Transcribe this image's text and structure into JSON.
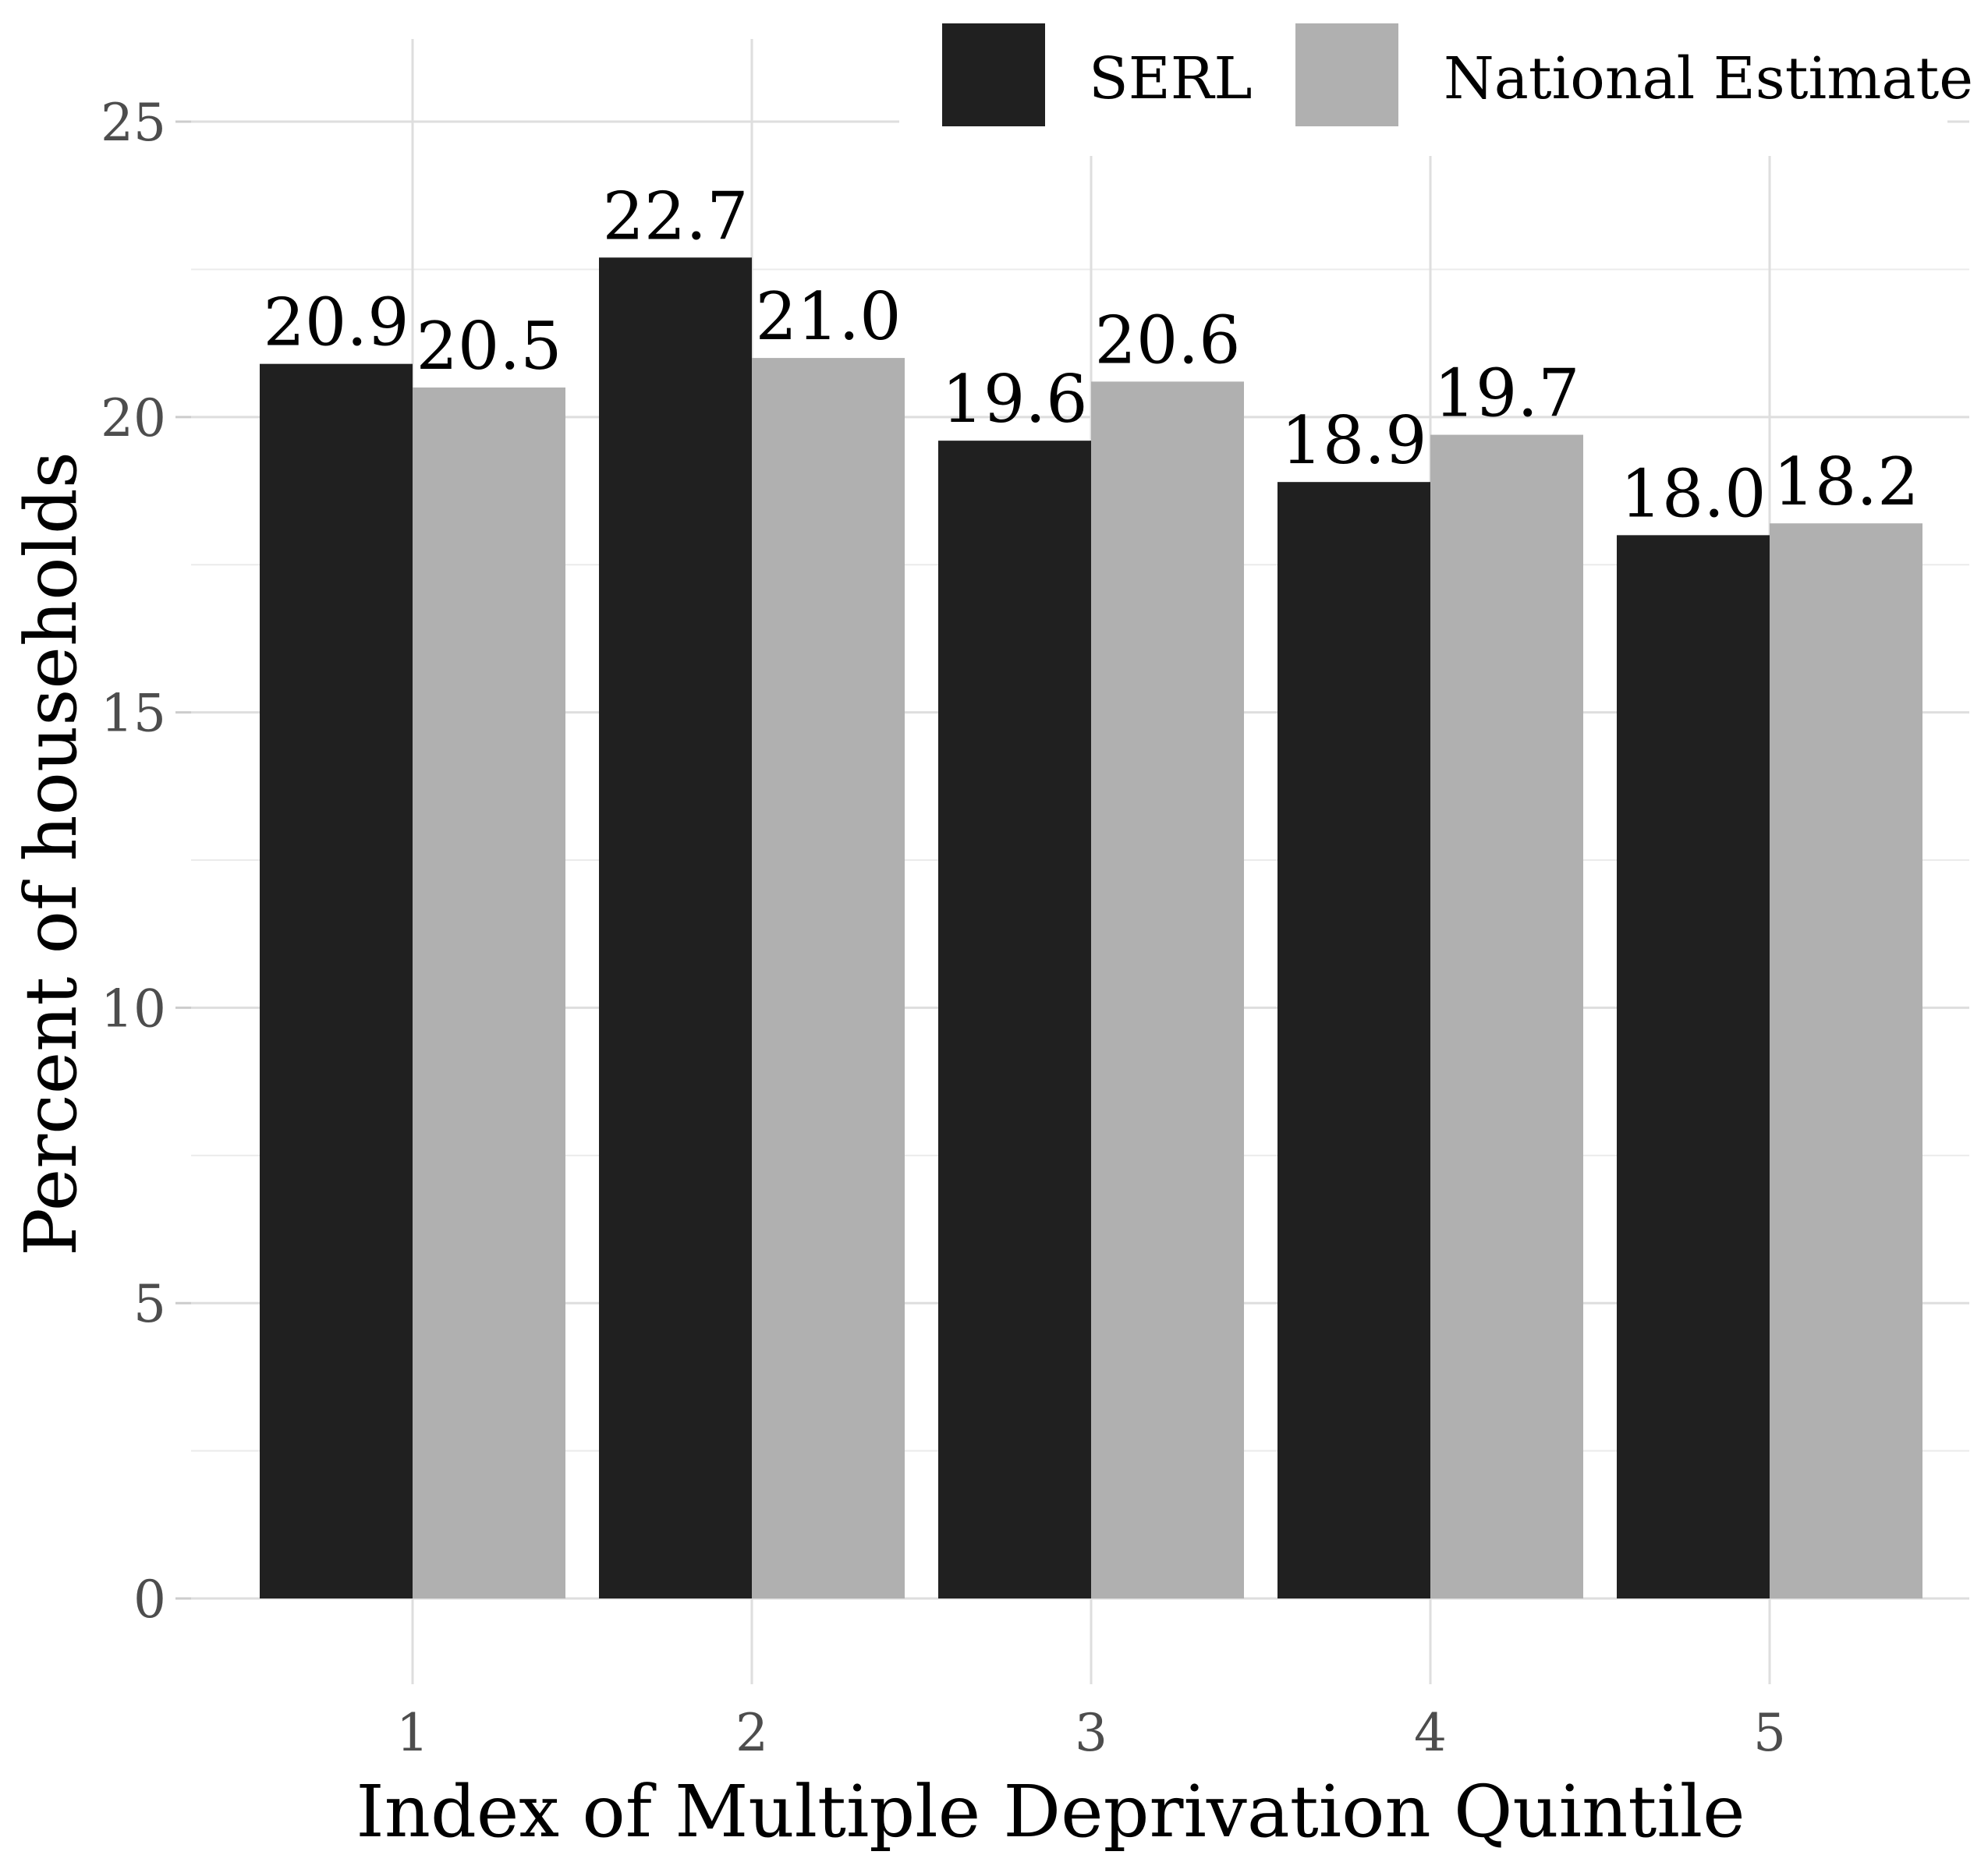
{
  "chart_data": {
    "type": "bar",
    "title": "",
    "xlabel": "Index of Multiple Deprivation Quintile",
    "ylabel": "Percent of households",
    "categories": [
      "1",
      "2",
      "3",
      "4",
      "5"
    ],
    "series": [
      {
        "name": "SERL",
        "color": "#202020",
        "values": [
          20.9,
          22.7,
          19.6,
          18.9,
          18.0
        ],
        "labels": [
          "20.9",
          "22.7",
          "19.6",
          "18.9",
          "18.0"
        ]
      },
      {
        "name": "National Estimate",
        "color": "#b0b0b0",
        "values": [
          20.5,
          21.0,
          20.6,
          19.7,
          18.2
        ],
        "labels": [
          "20.5",
          "21.0",
          "20.6",
          "19.7",
          "18.2"
        ]
      }
    ],
    "ylim": [
      0,
      26.4
    ],
    "yticks": [
      0,
      5,
      10,
      15,
      20,
      25
    ],
    "ytick_labels": [
      "0",
      "5",
      "10",
      "15",
      "20",
      "25"
    ],
    "grid": true,
    "legend_position": "top-right"
  }
}
